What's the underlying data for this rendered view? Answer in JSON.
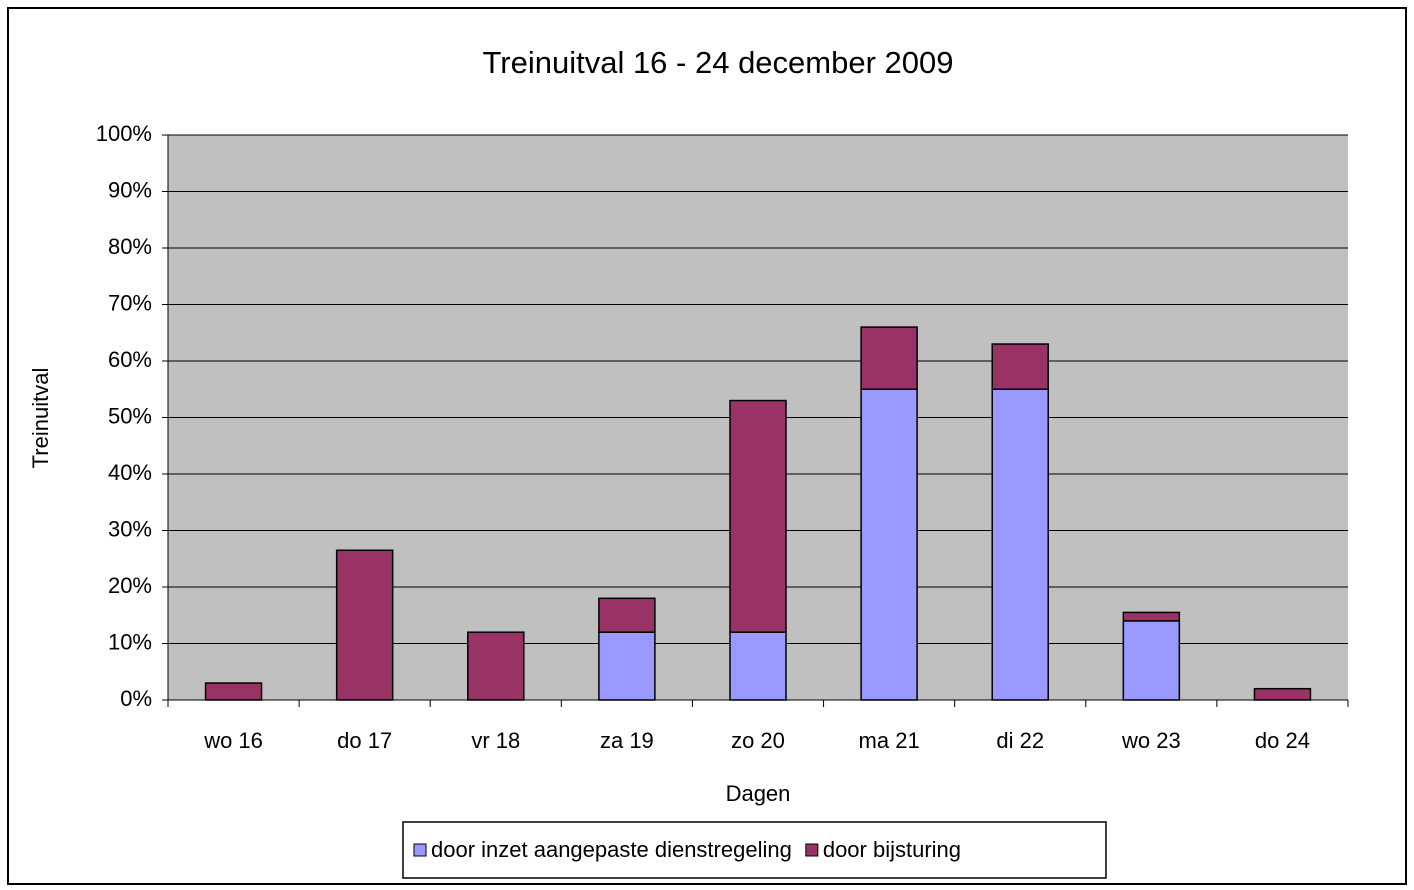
{
  "chart_data": {
    "type": "stacked_bar",
    "title": "Treinuitval 16 - 24 december 2009",
    "x_label": "Dagen",
    "y_label": "Treinuitval",
    "categories": [
      "wo 16",
      "do 17",
      "vr 18",
      "za 19",
      "zo 20",
      "ma 21",
      "di 22",
      "wo 23",
      "do 24"
    ],
    "series": [
      {
        "name": "door inzet aangepaste dienstregeling",
        "color": "#9999ff",
        "values": [
          0,
          0,
          0,
          12,
          12,
          55,
          55,
          14,
          0
        ]
      },
      {
        "name": "door bijsturing",
        "color": "#993366",
        "values": [
          3,
          26.5,
          12,
          6,
          41,
          11,
          8,
          1.5,
          2
        ]
      }
    ],
    "ylim": [
      0,
      100
    ],
    "yticks": [
      {
        "value": 0,
        "label": "0%"
      },
      {
        "value": 10,
        "label": "10%"
      },
      {
        "value": 20,
        "label": "20%"
      },
      {
        "value": 30,
        "label": "30%"
      },
      {
        "value": 40,
        "label": "40%"
      },
      {
        "value": 50,
        "label": "50%"
      },
      {
        "value": 60,
        "label": "60%"
      },
      {
        "value": 70,
        "label": "70%"
      },
      {
        "value": 80,
        "label": "80%"
      },
      {
        "value": 90,
        "label": "90%"
      },
      {
        "value": 100,
        "label": "100%"
      }
    ],
    "grid": true,
    "legend": "bottom"
  }
}
